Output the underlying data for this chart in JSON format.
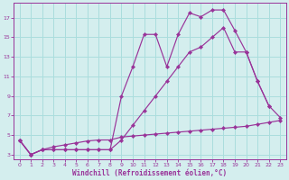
{
  "bg_color": "#d4eeee",
  "grid_color": "#aadddd",
  "line_color": "#993399",
  "marker_color": "#993399",
  "xlabel": "Windchill (Refroidissement éolien,°C)",
  "xlabel_color": "#993399",
  "xlim": [
    -0.5,
    23.5
  ],
  "ylim": [
    2.5,
    18.5
  ],
  "yticks": [
    3,
    5,
    7,
    9,
    11,
    13,
    15,
    17
  ],
  "xticks": [
    0,
    1,
    2,
    3,
    4,
    5,
    6,
    7,
    8,
    9,
    10,
    11,
    12,
    13,
    14,
    15,
    16,
    17,
    18,
    19,
    20,
    21,
    22,
    23
  ],
  "line1_x": [
    0,
    1,
    2,
    3,
    4,
    5,
    6,
    7,
    8,
    9,
    10,
    11,
    12,
    13,
    14,
    15,
    16,
    17,
    18,
    19,
    20,
    21,
    22
  ],
  "line1_y": [
    4.5,
    3.0,
    3.5,
    3.5,
    3.5,
    3.5,
    3.5,
    3.5,
    3.5,
    9.0,
    12.0,
    15.3,
    15.3,
    12.0,
    15.3,
    17.5,
    17.1,
    17.8,
    17.8,
    15.7,
    13.5,
    10.5,
    8.0
  ],
  "line2_x": [
    0,
    1,
    2,
    3,
    4,
    5,
    6,
    7,
    8,
    9,
    10,
    11,
    12,
    13,
    14,
    15,
    16,
    17,
    18,
    19,
    20,
    21,
    22,
    23
  ],
  "line2_y": [
    4.5,
    3.0,
    3.5,
    3.5,
    3.5,
    3.5,
    3.5,
    3.5,
    3.5,
    4.5,
    6.0,
    7.5,
    9.0,
    10.5,
    12.0,
    13.5,
    14.0,
    15.0,
    16.0,
    13.5,
    13.5,
    10.5,
    8.0,
    6.8
  ],
  "line3_x": [
    0,
    1,
    2,
    3,
    4,
    5,
    6,
    7,
    8,
    9,
    10,
    11,
    12,
    13,
    14,
    15,
    16,
    17,
    18,
    19,
    20,
    21,
    22,
    23
  ],
  "line3_y": [
    4.5,
    3.0,
    3.5,
    3.8,
    4.0,
    4.2,
    4.4,
    4.5,
    4.5,
    4.8,
    4.9,
    5.0,
    5.1,
    5.2,
    5.3,
    5.4,
    5.5,
    5.6,
    5.7,
    5.8,
    5.9,
    6.1,
    6.3,
    6.5
  ]
}
